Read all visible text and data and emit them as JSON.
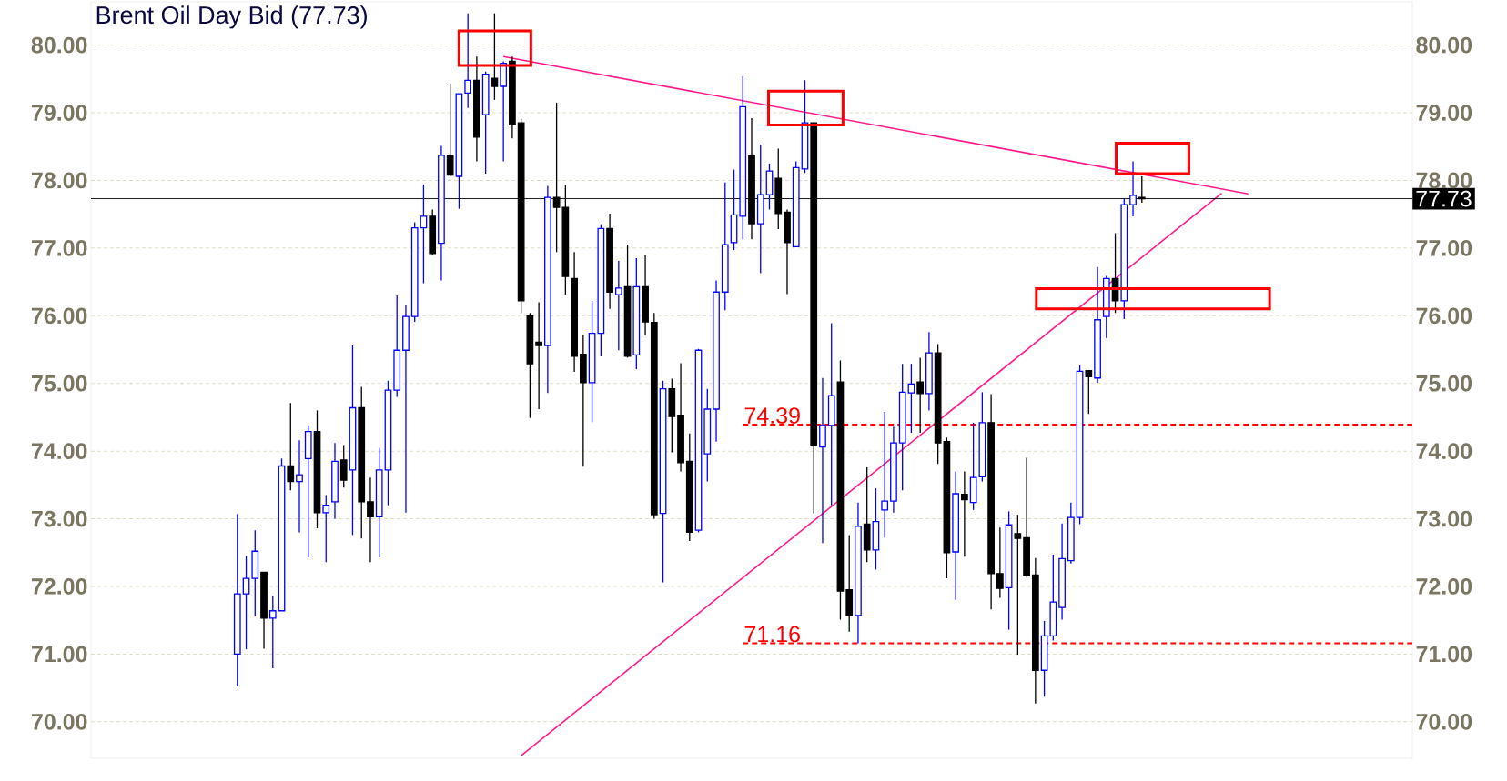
{
  "chart_data": {
    "type": "candlestick",
    "title": "Brent Oil Day Bid (77.73)",
    "categories": [
      null,
      null,
      null,
      null,
      null,
      null,
      null,
      null,
      null,
      null,
      null,
      null,
      null,
      null,
      null,
      null,
      null,
      null,
      null,
      null,
      null,
      null,
      null,
      null,
      null,
      null,
      null,
      null,
      null,
      null,
      null,
      null,
      null,
      null,
      null,
      null,
      null,
      null,
      null,
      null,
      null,
      null,
      null,
      null,
      null,
      null,
      null,
      null,
      null,
      null,
      null,
      null,
      null,
      null,
      null,
      null,
      null,
      null,
      null,
      null,
      null,
      null,
      null,
      null,
      null,
      null,
      null,
      null,
      null,
      null,
      null,
      null,
      null,
      null,
      null,
      null,
      null,
      null,
      null,
      null,
      null,
      null,
      null,
      null,
      null,
      null,
      null,
      null,
      null,
      null,
      null,
      null,
      null,
      null,
      null,
      null,
      null,
      null,
      null,
      null,
      null,
      null,
      null,
      null,
      null,
      null,
      null,
      null,
      null,
      null,
      null,
      null,
      null,
      null,
      null,
      null,
      null,
      null,
      null,
      null,
      null,
      null,
      null,
      null,
      null,
      null,
      null,
      null,
      null,
      null,
      null,
      null,
      null,
      null,
      null,
      null,
      null,
      null,
      null,
      null,
      null,
      null,
      null,
      null,
      null,
      null,
      null,
      null,
      null
    ],
    "ohlc": [
      null,
      null,
      null,
      null,
      null,
      null,
      null,
      null,
      null,
      null,
      null,
      null,
      null,
      null,
      null,
      null,
      [
        71.0,
        73.07,
        70.52,
        71.89
      ],
      [
        71.89,
        72.45,
        71.07,
        72.12
      ],
      [
        72.12,
        72.83,
        71.56,
        72.52
      ],
      [
        72.21,
        72.21,
        71.08,
        71.53
      ],
      [
        71.53,
        71.86,
        70.79,
        71.64
      ],
      [
        71.64,
        73.89,
        71.64,
        73.78
      ],
      [
        73.78,
        74.71,
        73.42,
        73.55
      ],
      [
        73.55,
        74.16,
        72.8,
        73.65
      ],
      [
        73.89,
        74.38,
        72.43,
        74.29
      ],
      [
        74.29,
        74.6,
        72.86,
        73.09
      ],
      [
        73.09,
        73.35,
        72.36,
        73.2
      ],
      [
        73.25,
        74.12,
        73.0,
        73.85
      ],
      [
        73.87,
        74.09,
        73.46,
        73.57
      ],
      [
        73.72,
        75.56,
        72.76,
        74.64
      ],
      [
        74.64,
        74.95,
        72.71,
        73.25
      ],
      [
        73.25,
        73.61,
        72.36,
        73.03
      ],
      [
        73.03,
        74.05,
        72.43,
        73.72
      ],
      [
        73.72,
        75.04,
        73.2,
        74.9
      ],
      [
        74.9,
        76.3,
        74.8,
        75.49
      ],
      [
        75.49,
        76.15,
        73.09,
        75.99
      ],
      [
        75.99,
        77.38,
        75.91,
        77.3
      ],
      [
        77.3,
        77.94,
        76.48,
        77.47
      ],
      [
        77.47,
        77.57,
        76.9,
        76.92
      ],
      [
        77.07,
        78.51,
        76.52,
        78.37
      ],
      [
        78.37,
        79.43,
        78.06,
        78.08
      ],
      [
        78.06,
        79.28,
        77.58,
        79.28
      ],
      [
        79.29,
        80.47,
        79.07,
        79.48
      ],
      [
        79.48,
        79.83,
        78.28,
        78.64
      ],
      [
        78.97,
        79.61,
        78.1,
        79.57
      ],
      [
        79.51,
        80.47,
        79.19,
        79.39
      ],
      [
        79.39,
        79.76,
        78.28,
        79.73
      ],
      [
        79.76,
        79.83,
        78.62,
        78.82
      ],
      [
        78.85,
        78.91,
        76.04,
        76.22
      ],
      [
        76.0,
        76.04,
        74.49,
        75.29
      ],
      [
        75.61,
        76.2,
        74.62,
        75.56
      ],
      [
        75.56,
        77.92,
        74.86,
        77.75
      ],
      [
        77.75,
        79.15,
        76.94,
        77.6
      ],
      [
        77.6,
        77.93,
        76.31,
        76.58
      ],
      [
        76.55,
        76.94,
        75.17,
        75.4
      ],
      [
        75.43,
        75.71,
        73.77,
        75.01
      ],
      [
        75.01,
        76.22,
        74.43,
        75.74
      ],
      [
        75.74,
        77.35,
        75.4,
        77.29
      ],
      [
        77.29,
        77.51,
        76.1,
        76.35
      ],
      [
        76.31,
        76.81,
        75.49,
        76.41
      ],
      [
        76.43,
        77.05,
        75.38,
        75.4
      ],
      [
        75.42,
        76.85,
        75.21,
        76.43
      ],
      [
        76.43,
        76.89,
        75.71,
        75.91
      ],
      [
        75.9,
        76.04,
        73.0,
        73.06
      ],
      [
        73.08,
        75.04,
        72.06,
        74.92
      ],
      [
        74.92,
        75.07,
        73.98,
        74.51
      ],
      [
        74.53,
        75.3,
        73.7,
        73.83
      ],
      [
        73.85,
        74.26,
        72.67,
        72.8
      ],
      [
        72.83,
        75.51,
        72.8,
        75.49
      ],
      [
        73.96,
        74.92,
        73.55,
        74.62
      ],
      [
        74.62,
        76.52,
        74.14,
        76.35
      ],
      [
        76.35,
        77.97,
        76.08,
        77.05
      ],
      [
        77.08,
        78.16,
        76.97,
        77.49
      ],
      [
        77.47,
        79.54,
        77.13,
        79.09
      ],
      [
        78.36,
        78.92,
        77.13,
        77.36
      ],
      [
        77.36,
        78.53,
        76.63,
        77.79
      ],
      [
        77.79,
        78.25,
        77.57,
        78.14
      ],
      [
        78.03,
        78.47,
        77.28,
        77.51
      ],
      [
        77.53,
        77.57,
        76.32,
        77.08
      ],
      [
        77.02,
        78.28,
        77.02,
        78.19
      ],
      [
        78.17,
        79.48,
        78.11,
        78.85
      ],
      [
        78.85,
        78.85,
        73.08,
        74.09
      ],
      [
        74.06,
        75.08,
        72.64,
        74.38
      ],
      [
        74.38,
        75.89,
        73.2,
        74.82
      ],
      [
        75.02,
        75.34,
        71.51,
        71.93
      ],
      [
        71.95,
        72.76,
        71.33,
        71.57
      ],
      [
        71.57,
        73.24,
        71.16,
        72.89
      ],
      [
        72.92,
        73.76,
        72.36,
        72.54
      ],
      [
        72.54,
        73.45,
        72.25,
        72.96
      ],
      [
        73.13,
        74.58,
        72.72,
        73.26
      ],
      [
        73.26,
        74.36,
        73.09,
        74.12
      ],
      [
        74.12,
        75.29,
        73.42,
        74.87
      ],
      [
        74.86,
        75.29,
        74.27,
        74.99
      ],
      [
        75.02,
        75.38,
        74.27,
        74.85
      ],
      [
        74.85,
        75.76,
        74.6,
        75.45
      ],
      [
        75.45,
        75.58,
        73.81,
        74.12
      ],
      [
        74.14,
        74.2,
        72.12,
        72.5
      ],
      [
        72.51,
        73.7,
        71.8,
        73.37
      ],
      [
        73.36,
        73.7,
        72.44,
        73.28
      ],
      [
        73.24,
        74.42,
        73.13,
        73.61
      ],
      [
        73.62,
        74.87,
        73.55,
        74.42
      ],
      [
        74.42,
        74.84,
        71.66,
        72.19
      ],
      [
        72.19,
        72.87,
        71.83,
        71.97
      ],
      [
        71.98,
        73.11,
        71.36,
        72.91
      ],
      [
        72.78,
        73.06,
        70.99,
        72.71
      ],
      [
        72.72,
        73.9,
        72.14,
        72.16
      ],
      [
        72.17,
        72.42,
        70.27,
        70.76
      ],
      [
        70.76,
        71.49,
        70.37,
        71.27
      ],
      [
        71.27,
        72.47,
        71.2,
        71.77
      ],
      [
        71.69,
        72.93,
        71.51,
        72.41
      ],
      [
        72.38,
        73.24,
        72.34,
        73.02
      ],
      [
        73.02,
        75.27,
        72.92,
        75.18
      ],
      [
        75.19,
        75.19,
        74.55,
        75.1
      ],
      [
        75.08,
        76.72,
        75.01,
        75.94
      ],
      [
        75.99,
        76.59,
        75.67,
        76.55
      ],
      [
        76.55,
        77.22,
        76.04,
        76.22
      ],
      [
        76.22,
        77.73,
        75.95,
        77.64
      ],
      [
        77.64,
        78.28,
        77.47,
        77.78
      ],
      [
        77.75,
        78.06,
        77.67,
        77.73
      ],
      null,
      null,
      null,
      null,
      null,
      null,
      null,
      null,
      null,
      null,
      null,
      null,
      null,
      null,
      null,
      null,
      null,
      null,
      null,
      null,
      null,
      null,
      null,
      null,
      null,
      null,
      null,
      null,
      null,
      null
    ],
    "series": [
      {
        "type": "line",
        "color": "#ff1a8c",
        "values": [
          null,
          null,
          null,
          null,
          null,
          null,
          null,
          null,
          null,
          null,
          null,
          null,
          null,
          null,
          null,
          null,
          null,
          null,
          null,
          null,
          null,
          null,
          null,
          null,
          null,
          null,
          null,
          null,
          null,
          null,
          null,
          null,
          null,
          null,
          null,
          null,
          null,
          null,
          null,
          null,
          null,
          null,
          null,
          null,
          null,
          null,
          79.83,
          null,
          null,
          null,
          null,
          null,
          null,
          null,
          null,
          null,
          null,
          null,
          null,
          null,
          null,
          null,
          null,
          null,
          null,
          null,
          null,
          null,
          null,
          null,
          null,
          null,
          null,
          null,
          null,
          null,
          null,
          null,
          null,
          null,
          null,
          null,
          null,
          null,
          null,
          null,
          null,
          null,
          null,
          null,
          null,
          null,
          null,
          null,
          null,
          null,
          null,
          null,
          null,
          null,
          null,
          null,
          null,
          null,
          null,
          null,
          null,
          null,
          null,
          null,
          null,
          null,
          null,
          null,
          null,
          null,
          null,
          null,
          null,
          null,
          null,
          null,
          null,
          null,
          null,
          null,
          null,
          null,
          null,
          null,
          77.8,
          null,
          null,
          null,
          null,
          null,
          null,
          null,
          null,
          null,
          null,
          null,
          null,
          null,
          null,
          null,
          null,
          null,
          null
        ]
      },
      {
        "type": "line",
        "color": "#ff1a8c",
        "values": [
          null,
          null,
          null,
          null,
          null,
          null,
          null,
          null,
          null,
          null,
          null,
          null,
          null,
          null,
          null,
          null,
          null,
          null,
          null,
          null,
          null,
          null,
          null,
          null,
          null,
          null,
          null,
          null,
          null,
          null,
          null,
          null,
          null,
          null,
          null,
          null,
          null,
          null,
          null,
          null,
          null,
          null,
          null,
          null,
          null,
          null,
          null,
          null,
          69.5,
          null,
          null,
          null,
          null,
          null,
          null,
          null,
          null,
          null,
          null,
          null,
          null,
          null,
          null,
          null,
          null,
          null,
          null,
          null,
          null,
          null,
          null,
          null,
          null,
          null,
          null,
          null,
          null,
          null,
          null,
          null,
          null,
          null,
          null,
          null,
          null,
          null,
          null,
          null,
          null,
          null,
          null,
          null,
          null,
          null,
          null,
          null,
          null,
          null,
          null,
          null,
          null,
          null,
          null,
          null,
          null,
          null,
          null,
          null,
          null,
          null,
          null,
          null,
          null,
          null,
          null,
          null,
          null,
          null,
          null,
          null,
          null,
          null,
          null,
          null,
          null,
          null,
          null,
          77.81,
          null,
          null,
          null,
          null,
          null,
          null,
          null,
          null,
          null,
          null,
          null,
          null,
          null,
          null,
          null,
          null,
          null,
          null,
          null,
          null,
          null
        ]
      }
    ],
    "ylim": [
      69.46,
      80.64
    ],
    "yticks": [
      {
        "value": 70,
        "label": "70.00"
      },
      {
        "value": 71,
        "label": "71.00"
      },
      {
        "value": 72,
        "label": "72.00"
      },
      {
        "value": 73,
        "label": "73.00"
      },
      {
        "value": 74,
        "label": "74.00"
      },
      {
        "value": 75,
        "label": "75.00"
      },
      {
        "value": 76,
        "label": "76.00"
      },
      {
        "value": 77,
        "label": "77.00"
      },
      {
        "value": 78,
        "label": "78.00"
      },
      {
        "value": 79,
        "label": "79.00"
      },
      {
        "value": 80,
        "label": "80.00"
      }
    ],
    "y2lim": [
      69.46,
      80.64
    ],
    "y2ticks": [
      {
        "value": 70,
        "label": "70.00"
      },
      {
        "value": 71,
        "label": "71.00"
      },
      {
        "value": 72,
        "label": "72.00"
      },
      {
        "value": 73,
        "label": "73.00"
      },
      {
        "value": 74,
        "label": "74.00"
      },
      {
        "value": 75,
        "label": "75.00"
      },
      {
        "value": 76,
        "label": "76.00"
      },
      {
        "value": 77,
        "label": "77.00"
      },
      {
        "value": 78,
        "label": "78.00"
      },
      {
        "value": 79,
        "label": "79.00"
      },
      {
        "value": 80,
        "label": "80.00"
      }
    ],
    "ref_lines": [
      {
        "axis": "y",
        "value": 77.73,
        "label": "77.73",
        "color": "#000000",
        "line_style": "solid"
      },
      {
        "axis": "y",
        "value": 74.39,
        "label": "74.39",
        "color": "#ff0000",
        "line_style": "dashed"
      },
      {
        "axis": "y",
        "value": 71.16,
        "label": "71.16",
        "color": "#ff0000",
        "line_style": "dashed"
      }
    ],
    "grid": "y"
  }
}
